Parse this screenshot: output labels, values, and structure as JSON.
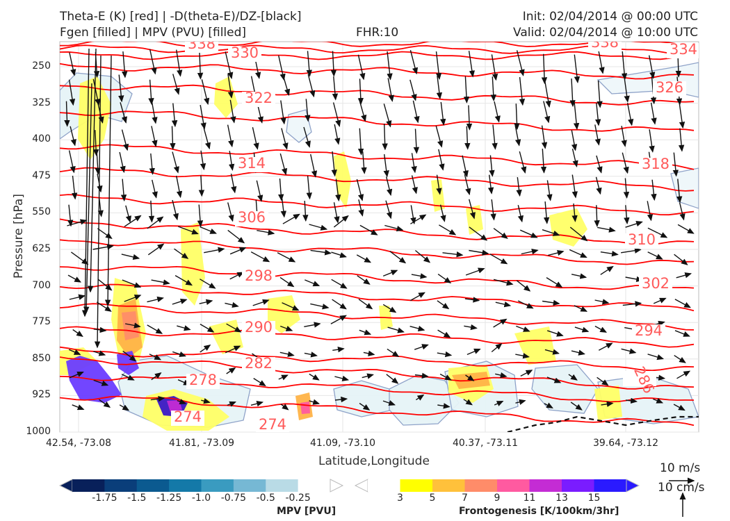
{
  "header": {
    "title_left_1": "Theta-E (K) [red] | -D(theta-E)/DZ-[black]",
    "title_left_2": "Fgen [filled] | MPV (PVU) [filled]",
    "fhr": "FHR:10",
    "init": "Init: 02/04/2014 @ 00:00 UTC",
    "valid": "Valid: 02/04/2014 @ 10:00 UTC"
  },
  "colors": {
    "theta_e": "#ff0000",
    "theta_e_label": "#ff5a5a",
    "mpv_outline": "#8ea2c8",
    "fgen_yellow": "#ffff66",
    "fgen_orange": "#ffb347",
    "fgen_salmon": "#ff8c69",
    "fgen_pink": "#ff5aa0",
    "mpv_purple": "#6a3cff"
  },
  "chart_data": {
    "type": "contour-cross-section",
    "xlabel": "Latitude,Longitude",
    "ylabel": "Pressure [hPa]",
    "yticks": [
      "250",
      "325",
      "400",
      "475",
      "550",
      "625",
      "700",
      "775",
      "850",
      "925",
      "1000"
    ],
    "xticks": [
      "42.54, -73.08",
      "41.81, -73.09",
      "41.09, -73.10",
      "40.37, -73.11",
      "39.64, -73.12"
    ],
    "ylim": [
      1000,
      200
    ],
    "theta_e_contours": [
      {
        "label": "338",
        "values": [
          [
            "42.54, -73.08",
            200
          ],
          [
            "39.64, -73.12",
            205
          ]
        ]
      },
      {
        "label": "330"
      },
      {
        "label": "334"
      },
      {
        "label": "326"
      },
      {
        "label": "322"
      },
      {
        "label": "318"
      },
      {
        "label": "314"
      },
      {
        "label": "310"
      },
      {
        "label": "306"
      },
      {
        "label": "302"
      },
      {
        "label": "298"
      },
      {
        "label": "294"
      },
      {
        "label": "290"
      },
      {
        "label": "286"
      },
      {
        "label": "282"
      },
      {
        "label": "278"
      },
      {
        "label": "274"
      }
    ],
    "mpv_colorbar": {
      "title": "MPV [PVU]",
      "labels": [
        "-1.75",
        "-1.5",
        "-1.25",
        "-1.0",
        "-0.75",
        "-0.5",
        "-0.25"
      ],
      "colors": [
        "#08205a",
        "#0a3e7a",
        "#0b5a90",
        "#1479a8",
        "#3a9bc0",
        "#76b8d4",
        "#b9dbe6",
        "#ffffff"
      ]
    },
    "fgen_colorbar": {
      "title": "Frontogenesis [K/100km/3hr]",
      "labels": [
        "3",
        "5",
        "7",
        "9",
        "11",
        "13",
        "15"
      ],
      "colors": [
        "#ffffff",
        "#ffff00",
        "#ffc13b",
        "#ff8c69",
        "#ff5aa0",
        "#c42cd4",
        "#7a1cff",
        "#2a1aff"
      ]
    },
    "wind_key": {
      "horizontal": "10 m/s",
      "vertical": "10 cm/s"
    }
  }
}
